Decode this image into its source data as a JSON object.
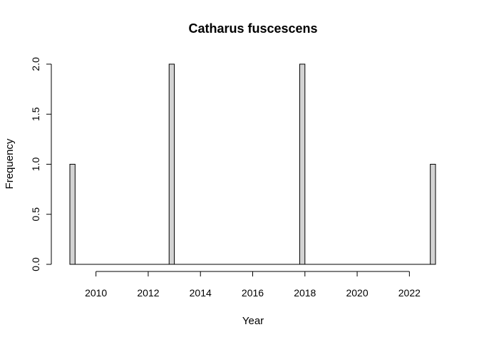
{
  "chart_data": {
    "type": "bar",
    "title": "Catharus fuscescens",
    "xlabel": "Year",
    "ylabel": "Frequency",
    "bar_color": "#d3d3d3",
    "bar_border_color": "#000000",
    "bins": [
      {
        "start": 2009.0,
        "end": 2009.2,
        "value": 1
      },
      {
        "start": 2012.8,
        "end": 2013.0,
        "value": 2
      },
      {
        "start": 2017.8,
        "end": 2018.0,
        "value": 2
      },
      {
        "start": 2022.8,
        "end": 2023.0,
        "value": 1
      }
    ],
    "x_range": [
      2009.0,
      2023.0
    ],
    "bin_width": 0.2,
    "ylim": [
      0,
      2
    ],
    "x_ticks": [
      {
        "value": 2010,
        "label": "2010"
      },
      {
        "value": 2012,
        "label": "2012"
      },
      {
        "value": 2014,
        "label": "2014"
      },
      {
        "value": 2016,
        "label": "2016"
      },
      {
        "value": 2018,
        "label": "2018"
      },
      {
        "value": 2020,
        "label": "2020"
      },
      {
        "value": 2022,
        "label": "2022"
      }
    ],
    "y_ticks": [
      {
        "value": 0.0,
        "label": "0.0"
      },
      {
        "value": 0.5,
        "label": "0.5"
      },
      {
        "value": 1.0,
        "label": "1.0"
      },
      {
        "value": 1.5,
        "label": "1.5"
      },
      {
        "value": 2.0,
        "label": "2.0"
      }
    ]
  }
}
